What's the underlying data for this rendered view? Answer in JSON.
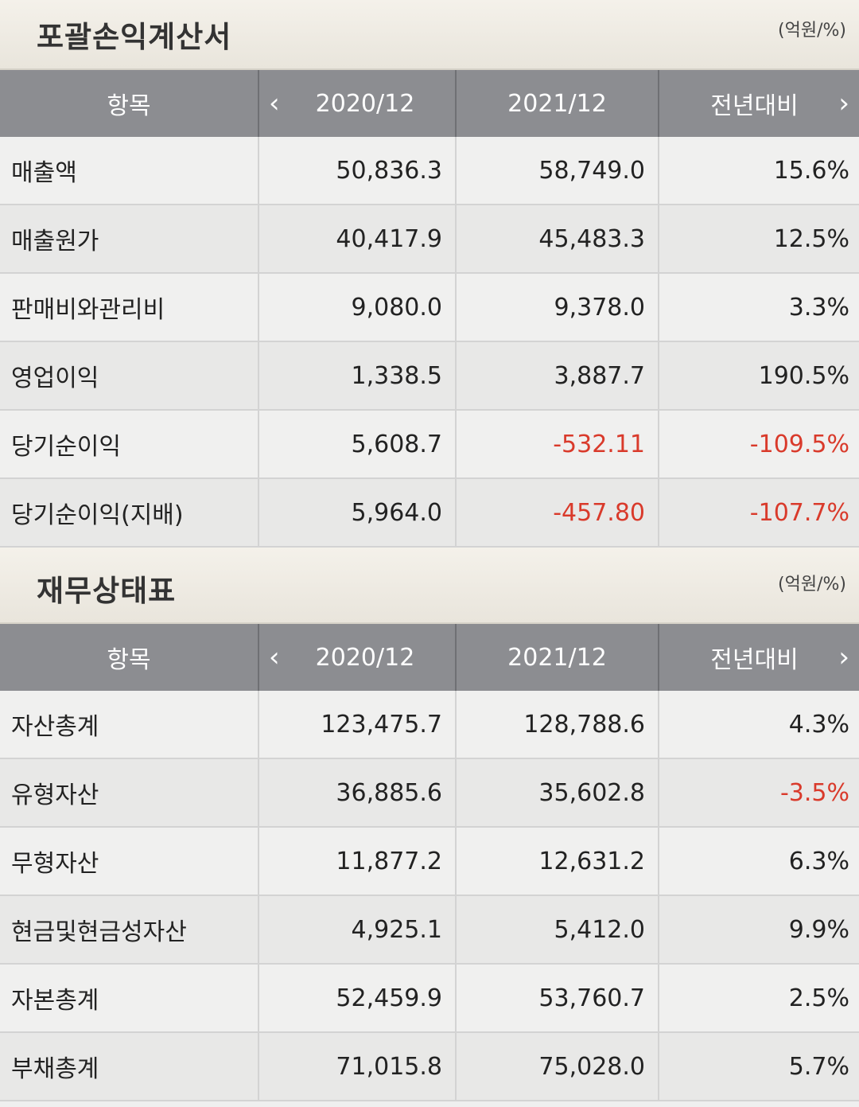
{
  "income": {
    "title": "포괄손익계산서",
    "unit": "(억원/%)",
    "header": {
      "item": "항목",
      "col1": "2020/12",
      "col2": "2021/12",
      "col3": "전년대비"
    },
    "rows": [
      {
        "label": "매출액",
        "v1": "50,836.3",
        "v2": "58,749.0",
        "v3": "15.6%",
        "neg2": false,
        "neg3": false
      },
      {
        "label": "매출원가",
        "v1": "40,417.9",
        "v2": "45,483.3",
        "v3": "12.5%",
        "neg2": false,
        "neg3": false
      },
      {
        "label": "판매비와관리비",
        "v1": "9,080.0",
        "v2": "9,378.0",
        "v3": "3.3%",
        "neg2": false,
        "neg3": false
      },
      {
        "label": "영업이익",
        "v1": "1,338.5",
        "v2": "3,887.7",
        "v3": "190.5%",
        "neg2": false,
        "neg3": false
      },
      {
        "label": "당기순이익",
        "v1": "5,608.7",
        "v2": "-532.11",
        "v3": "-109.5%",
        "neg2": true,
        "neg3": true
      },
      {
        "label": "당기순이익(지배)",
        "v1": "5,964.0",
        "v2": "-457.80",
        "v3": "-107.7%",
        "neg2": true,
        "neg3": true
      }
    ]
  },
  "balance": {
    "title": "재무상태표",
    "unit": "(억원/%)",
    "header": {
      "item": "항목",
      "col1": "2020/12",
      "col2": "2021/12",
      "col3": "전년대비"
    },
    "rows": [
      {
        "label": "자산총계",
        "v1": "123,475.7",
        "v2": "128,788.6",
        "v3": "4.3%",
        "neg2": false,
        "neg3": false
      },
      {
        "label": "유형자산",
        "v1": "36,885.6",
        "v2": "35,602.8",
        "v3": "-3.5%",
        "neg2": false,
        "neg3": true
      },
      {
        "label": "무형자산",
        "v1": "11,877.2",
        "v2": "12,631.2",
        "v3": "6.3%",
        "neg2": false,
        "neg3": false
      },
      {
        "label": "현금및현금성자산",
        "v1": "4,925.1",
        "v2": "5,412.0",
        "v3": "9.9%",
        "neg2": false,
        "neg3": false
      },
      {
        "label": "자본총계",
        "v1": "52,459.9",
        "v2": "53,760.7",
        "v3": "2.5%",
        "neg2": false,
        "neg3": false
      },
      {
        "label": "부채총계",
        "v1": "71,015.8",
        "v2": "75,028.0",
        "v3": "5.7%",
        "neg2": false,
        "neg3": false
      }
    ]
  },
  "icons": {
    "prev": "chevron-left-icon",
    "next": "chevron-right-icon"
  },
  "colors": {
    "negative": "#d93a2b",
    "header_bg": "#8c8d91"
  }
}
